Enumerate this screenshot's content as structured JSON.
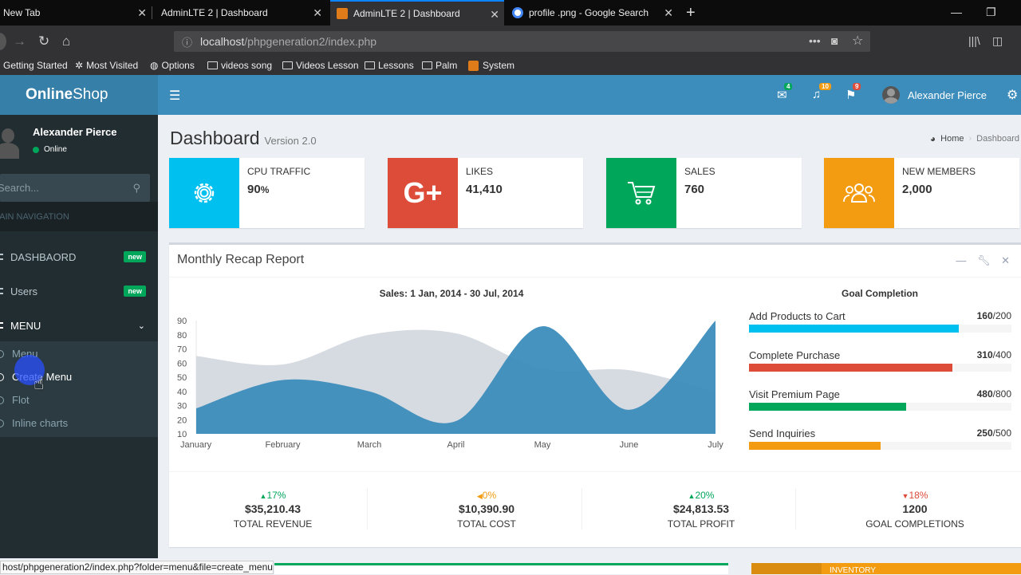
{
  "browser": {
    "tabs": [
      {
        "title": "New Tab"
      },
      {
        "title": "AdminLTE 2 | Dashboard"
      },
      {
        "title": "AdminLTE 2 | Dashboard"
      },
      {
        "title": "profile .png - Google Search"
      }
    ],
    "url_host": "localhost",
    "url_path": "/phpgeneration2/index.php",
    "bookmarks": [
      "Getting Started",
      "Most Visited",
      "Options",
      "videos song",
      "Videos Lesson",
      "Lessons",
      "Palm",
      "System"
    ],
    "status_url": "host/phpgeneration2/index.php?folder=menu&file=create_menu"
  },
  "app": {
    "logo_bold": "Online",
    "logo_light": "Shop"
  },
  "header": {
    "badges": {
      "messages": "4",
      "notifications": "10",
      "tasks": "9"
    },
    "user_name": "Alexander Pierce"
  },
  "sidebar": {
    "user_name": "Alexander Pierce",
    "status": "Online",
    "search_placeholder": "Search...",
    "nav_header": "MAIN NAVIGATION",
    "items": [
      {
        "label": "DASHBAORD",
        "badge": "new"
      },
      {
        "label": "Users",
        "badge": "new"
      },
      {
        "label": "MENU"
      }
    ],
    "submenu": [
      "Menu",
      "Create Menu",
      "Flot",
      "Inline charts"
    ]
  },
  "page": {
    "title": "Dashboard",
    "subtitle": "Version 2.0",
    "breadcrumb": [
      "Home",
      "Dashboard"
    ]
  },
  "info_boxes": [
    {
      "label": "CPU TRAFFIC",
      "value": "90",
      "unit": "%",
      "color": "#00c0ef",
      "icon": "gear-icon"
    },
    {
      "label": "LIKES",
      "value": "41,410",
      "color": "#dd4b39",
      "icon": "google-plus-icon"
    },
    {
      "label": "SALES",
      "value": "760",
      "color": "#00a65a",
      "icon": "cart-icon"
    },
    {
      "label": "NEW MEMBERS",
      "value": "2,000",
      "color": "#f39c12",
      "icon": "users-icon"
    }
  ],
  "report": {
    "title": "Monthly Recap Report",
    "chart_title": "Sales: 1 Jan, 2014 - 30 Jul, 2014",
    "goal_title": "Goal Completion",
    "goals": [
      {
        "label": "Add Products to Cart",
        "done": "160",
        "total": "/200",
        "color": "#00c0ef",
        "fraction": 0.8
      },
      {
        "label": "Complete Purchase",
        "done": "310",
        "total": "/400",
        "color": "#dd4b39",
        "fraction": 0.775
      },
      {
        "label": "Visit Premium Page",
        "done": "480",
        "total": "/800",
        "color": "#00a65a",
        "fraction": 0.6
      },
      {
        "label": "Send Inquiries",
        "done": "250",
        "total": "/500",
        "color": "#f39c12",
        "fraction": 0.5
      }
    ],
    "stats": [
      {
        "pct": "17%",
        "dir": "up",
        "color": "#00a65a",
        "amount": "$35,210.43",
        "label": "TOTAL REVENUE"
      },
      {
        "pct": "0%",
        "dir": "left",
        "color": "#f39c12",
        "amount": "$10,390.90",
        "label": "TOTAL COST"
      },
      {
        "pct": "20%",
        "dir": "up",
        "color": "#00a65a",
        "amount": "$24,813.53",
        "label": "TOTAL PROFIT"
      },
      {
        "pct": "18%",
        "dir": "down",
        "color": "#dd4b39",
        "amount": "1200",
        "label": "GOAL COMPLETIONS"
      }
    ]
  },
  "bottom": {
    "inventory_label": "INVENTORY"
  },
  "chart_data": {
    "type": "area",
    "title": "Sales: 1 Jan, 2014 - 30 Jul, 2014",
    "categories": [
      "January",
      "February",
      "March",
      "April",
      "May",
      "June",
      "July"
    ],
    "y_ticks": [
      "90",
      "80",
      "70",
      "60",
      "50",
      "40",
      "30",
      "20",
      "10"
    ],
    "ylim": [
      10,
      90
    ],
    "series": [
      {
        "values": [
          65,
          59,
          80,
          81,
          56,
          55,
          40
        ],
        "color": "#d2d6de"
      },
      {
        "values": [
          28,
          48,
          40,
          19,
          86,
          27,
          90
        ],
        "color": "#3c8dbc"
      }
    ]
  }
}
